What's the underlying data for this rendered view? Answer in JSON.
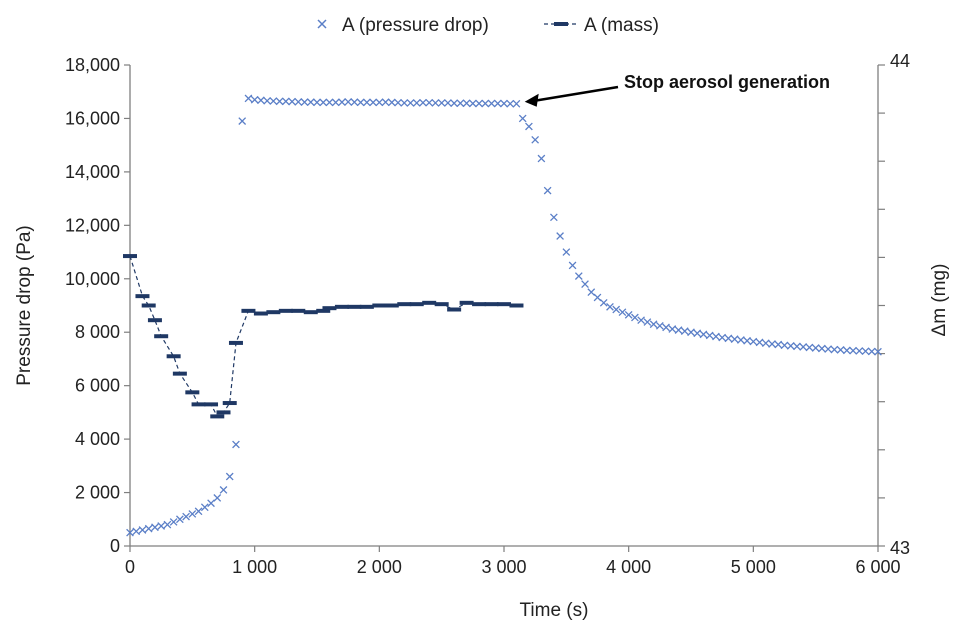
{
  "chart_data": {
    "type": "scatter",
    "xlabel": "Time (s)",
    "ylabel": "Pressure drop (Pa)",
    "y2label": "Δm (mg)",
    "xlim": [
      0,
      6000
    ],
    "ylim": [
      0,
      18000
    ],
    "y2lim": [
      43,
      44
    ],
    "x_ticks": [
      "0",
      "1 000",
      "2 000",
      "3 000",
      "4 000",
      "5 000",
      "6 000"
    ],
    "y_ticks": [
      "0",
      "2 000",
      "4 000",
      "6 000",
      "8 000",
      "10,000",
      "12,000",
      "14,000",
      "16,000",
      "18,000"
    ],
    "y2_ticks": [
      "43",
      "44"
    ],
    "grid": false,
    "legend_position": "top",
    "colors": {
      "pressure": "#5b7fc7",
      "mass": "#1f3864",
      "axis": "#7f7f7f"
    },
    "series": [
      {
        "name": "A (pressure drop)",
        "axis": "left",
        "marker": "x",
        "points": [
          [
            0,
            500
          ],
          [
            50,
            550
          ],
          [
            100,
            600
          ],
          [
            150,
            650
          ],
          [
            200,
            700
          ],
          [
            250,
            750
          ],
          [
            300,
            800
          ],
          [
            350,
            900
          ],
          [
            400,
            1000
          ],
          [
            450,
            1100
          ],
          [
            500,
            1200
          ],
          [
            550,
            1300
          ],
          [
            600,
            1450
          ],
          [
            650,
            1600
          ],
          [
            700,
            1800
          ],
          [
            750,
            2100
          ],
          [
            800,
            2600
          ],
          [
            850,
            3800
          ],
          [
            900,
            15900
          ],
          [
            950,
            16750
          ],
          [
            1000,
            16700
          ],
          [
            1050,
            16680
          ],
          [
            1100,
            16660
          ],
          [
            1150,
            16650
          ],
          [
            1200,
            16640
          ],
          [
            1250,
            16640
          ],
          [
            1300,
            16630
          ],
          [
            1350,
            16620
          ],
          [
            1400,
            16610
          ],
          [
            1450,
            16610
          ],
          [
            1500,
            16600
          ],
          [
            1550,
            16600
          ],
          [
            1600,
            16600
          ],
          [
            1650,
            16600
          ],
          [
            1700,
            16610
          ],
          [
            1750,
            16620
          ],
          [
            1800,
            16610
          ],
          [
            1850,
            16600
          ],
          [
            1900,
            16600
          ],
          [
            1950,
            16600
          ],
          [
            2000,
            16600
          ],
          [
            2050,
            16610
          ],
          [
            2100,
            16600
          ],
          [
            2150,
            16590
          ],
          [
            2200,
            16580
          ],
          [
            2250,
            16580
          ],
          [
            2300,
            16580
          ],
          [
            2350,
            16590
          ],
          [
            2400,
            16590
          ],
          [
            2450,
            16580
          ],
          [
            2500,
            16580
          ],
          [
            2550,
            16580
          ],
          [
            2600,
            16570
          ],
          [
            2650,
            16570
          ],
          [
            2700,
            16570
          ],
          [
            2750,
            16560
          ],
          [
            2800,
            16560
          ],
          [
            2850,
            16560
          ],
          [
            2900,
            16560
          ],
          [
            2950,
            16560
          ],
          [
            3000,
            16560
          ],
          [
            3050,
            16550
          ],
          [
            3100,
            16550
          ],
          [
            3150,
            16000
          ],
          [
            3200,
            15700
          ],
          [
            3250,
            15200
          ],
          [
            3300,
            14500
          ],
          [
            3350,
            13300
          ],
          [
            3400,
            12300
          ],
          [
            3450,
            11600
          ],
          [
            3500,
            11000
          ],
          [
            3550,
            10500
          ],
          [
            3600,
            10100
          ],
          [
            3650,
            9800
          ],
          [
            3700,
            9500
          ],
          [
            3750,
            9300
          ],
          [
            3800,
            9100
          ],
          [
            3850,
            8950
          ],
          [
            3900,
            8850
          ],
          [
            3950,
            8750
          ],
          [
            4000,
            8650
          ],
          [
            4050,
            8550
          ],
          [
            4100,
            8450
          ],
          [
            4150,
            8380
          ],
          [
            4200,
            8300
          ],
          [
            4250,
            8240
          ],
          [
            4300,
            8180
          ],
          [
            4350,
            8120
          ],
          [
            4400,
            8080
          ],
          [
            4450,
            8040
          ],
          [
            4500,
            8000
          ],
          [
            4550,
            7960
          ],
          [
            4600,
            7920
          ],
          [
            4650,
            7880
          ],
          [
            4700,
            7840
          ],
          [
            4750,
            7800
          ],
          [
            4800,
            7770
          ],
          [
            4850,
            7740
          ],
          [
            4900,
            7710
          ],
          [
            4950,
            7680
          ],
          [
            5000,
            7650
          ],
          [
            5050,
            7620
          ],
          [
            5100,
            7590
          ],
          [
            5150,
            7560
          ],
          [
            5200,
            7540
          ],
          [
            5250,
            7510
          ],
          [
            5300,
            7490
          ],
          [
            5350,
            7470
          ],
          [
            5400,
            7450
          ],
          [
            5450,
            7430
          ],
          [
            5500,
            7410
          ],
          [
            5550,
            7390
          ],
          [
            5600,
            7370
          ],
          [
            5650,
            7350
          ],
          [
            5700,
            7340
          ],
          [
            5750,
            7320
          ],
          [
            5800,
            7310
          ],
          [
            5850,
            7300
          ],
          [
            5900,
            7290
          ],
          [
            5950,
            7280
          ],
          [
            6000,
            7270
          ]
        ]
      },
      {
        "name": "A (mass)",
        "axis": "left",
        "marker": "dash",
        "points": [
          [
            0,
            10850
          ],
          [
            100,
            9350
          ],
          [
            150,
            9000
          ],
          [
            200,
            8450
          ],
          [
            250,
            7850
          ],
          [
            350,
            7100
          ],
          [
            400,
            6450
          ],
          [
            500,
            5750
          ],
          [
            550,
            5300
          ],
          [
            650,
            5300
          ],
          [
            700,
            4850
          ],
          [
            750,
            5000
          ],
          [
            800,
            5350
          ],
          [
            850,
            7600
          ],
          [
            950,
            8800
          ],
          [
            1050,
            8700
          ],
          [
            1150,
            8750
          ],
          [
            1250,
            8800
          ],
          [
            1350,
            8800
          ],
          [
            1450,
            8750
          ],
          [
            1550,
            8800
          ],
          [
            1600,
            8900
          ],
          [
            1700,
            8950
          ],
          [
            1800,
            8950
          ],
          [
            1900,
            8950
          ],
          [
            2000,
            9000
          ],
          [
            2100,
            9000
          ],
          [
            2200,
            9050
          ],
          [
            2300,
            9050
          ],
          [
            2400,
            9100
          ],
          [
            2500,
            9050
          ],
          [
            2600,
            8850
          ],
          [
            2700,
            9100
          ],
          [
            2800,
            9050
          ],
          [
            2900,
            9050
          ],
          [
            3000,
            9050
          ],
          [
            3100,
            9000
          ]
        ]
      }
    ],
    "annotations": [
      {
        "text": "Stop aerosol generation",
        "x": 3150,
        "y": 16550
      }
    ]
  }
}
